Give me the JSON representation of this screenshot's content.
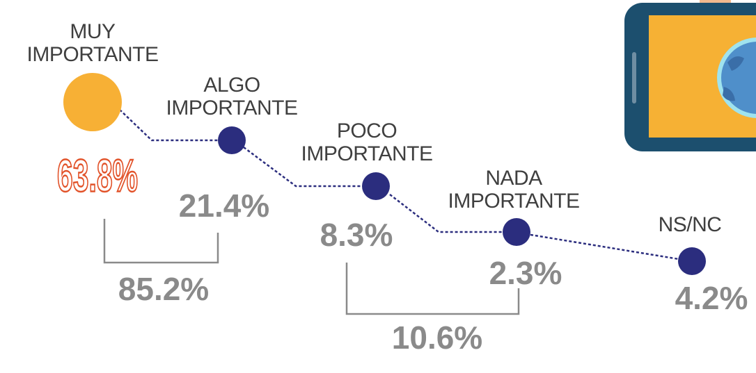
{
  "items": [
    {
      "label": [
        "MUY",
        "IMPORTANTE"
      ],
      "value": "63.8%"
    },
    {
      "label": [
        "ALGO",
        "IMPORTANTE"
      ],
      "value": "21.4%"
    },
    {
      "label": [
        "POCO",
        "IMPORTANTE"
      ],
      "value": "8.3%"
    },
    {
      "label": [
        "NADA",
        "IMPORTANTE"
      ],
      "value": "2.3%"
    },
    {
      "label": [
        "NS/NC"
      ],
      "value": "4.2%"
    }
  ],
  "groups": [
    "85.2%",
    "10.6%"
  ]
}
